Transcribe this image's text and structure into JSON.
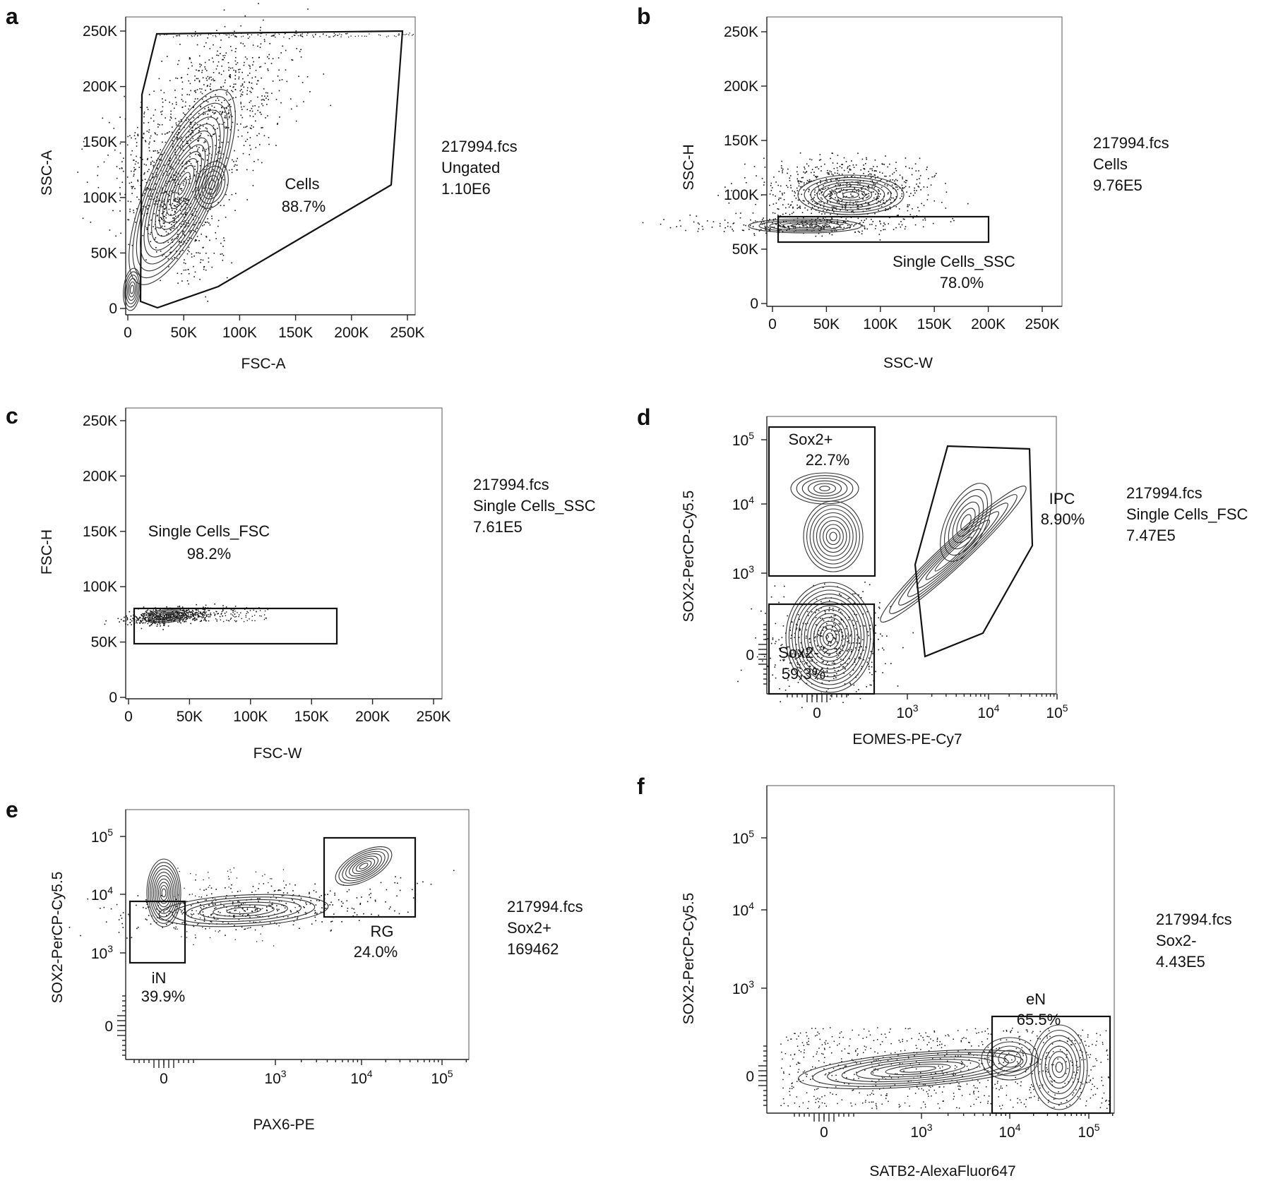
{
  "panels": [
    {
      "letter": "a",
      "info": [
        "217994.fcs",
        "Ungated",
        "1.10E6"
      ],
      "gates": [
        {
          "name": "Cells",
          "percent": "88.7%"
        }
      ],
      "chart_data": {
        "type": "scatter",
        "xlabel": "FSC-A",
        "ylabel": "SSC-A",
        "xlim": [
          0,
          262144
        ],
        "ylim": [
          0,
          262144
        ],
        "xticks": [
          "0",
          "50K",
          "100K",
          "150K",
          "200K",
          "250K"
        ],
        "yticks": [
          "0",
          "50K",
          "100K",
          "150K",
          "200K",
          "250K"
        ]
      }
    },
    {
      "letter": "b",
      "info": [
        "217994.fcs",
        "Cells",
        "9.76E5"
      ],
      "gates": [
        {
          "name": "Single Cells_SSC",
          "percent": "78.0%"
        }
      ],
      "chart_data": {
        "type": "scatter",
        "xlabel": "SSC-W",
        "ylabel": "SSC-H",
        "xlim": [
          0,
          262144
        ],
        "ylim": [
          0,
          262144
        ],
        "xticks": [
          "0",
          "50K",
          "100K",
          "150K",
          "200K",
          "250K"
        ],
        "yticks": [
          "0",
          "50K",
          "100K",
          "150K",
          "200K",
          "250K"
        ]
      }
    },
    {
      "letter": "c",
      "info": [
        "217994.fcs",
        "Single Cells_SSC",
        "7.61E5"
      ],
      "gates": [
        {
          "name": "Single Cells_FSC",
          "percent": "98.2%"
        }
      ],
      "chart_data": {
        "type": "scatter",
        "xlabel": "FSC-W",
        "ylabel": "FSC-H",
        "xlim": [
          0,
          262144
        ],
        "ylim": [
          0,
          262144
        ],
        "xticks": [
          "0",
          "50K",
          "100K",
          "150K",
          "200K",
          "250K"
        ],
        "yticks": [
          "0",
          "50K",
          "100K",
          "150K",
          "200K",
          "250K"
        ]
      }
    },
    {
      "letter": "d",
      "info": [
        "217994.fcs",
        "Single Cells_FSC",
        "7.47E5"
      ],
      "gates": [
        {
          "name": "Sox2+",
          "percent": "22.7%"
        },
        {
          "name": "IPC",
          "percent": "8.90%"
        },
        {
          "name": "Sox2-",
          "percent": "59.3%"
        }
      ],
      "chart_data": {
        "type": "scatter",
        "xscale": "biexponential",
        "yscale": "biexponential",
        "xlabel": "EOMES-PE-Cy7",
        "ylabel": "SOX2-PerCP-Cy5.5",
        "xticks": [
          "0",
          "10",
          "10",
          "10"
        ],
        "yticks": [
          "0",
          "10",
          "10",
          "10"
        ],
        "tick_exponents": [
          "3",
          "4",
          "5"
        ]
      }
    },
    {
      "letter": "e",
      "info": [
        "217994.fcs",
        "Sox2+",
        "169462"
      ],
      "gates": [
        {
          "name": "iN",
          "percent": "39.9%"
        },
        {
          "name": "RG",
          "percent": "24.0%"
        }
      ],
      "chart_data": {
        "type": "scatter",
        "xscale": "biexponential",
        "yscale": "biexponential",
        "xlabel": "PAX6-PE",
        "ylabel": "SOX2-PerCP-Cy5.5",
        "xticks": [
          "0",
          "10",
          "10",
          "10"
        ],
        "yticks": [
          "0",
          "10",
          "10",
          "10"
        ],
        "tick_exponents": [
          "3",
          "4",
          "5"
        ]
      }
    },
    {
      "letter": "f",
      "info": [
        "217994.fcs",
        "Sox2-",
        "4.43E5"
      ],
      "gates": [
        {
          "name": "eN",
          "percent": "65.5%"
        }
      ],
      "chart_data": {
        "type": "scatter",
        "xscale": "biexponential",
        "yscale": "biexponential",
        "xlabel": "SATB2-AlexaFluor647",
        "ylabel": "SOX2-PerCP-Cy5.5",
        "xticks": [
          "0",
          "10",
          "10",
          "10"
        ],
        "yticks": [
          "0",
          "10",
          "10",
          "10"
        ],
        "tick_exponents": [
          "3",
          "4",
          "5"
        ]
      }
    }
  ]
}
